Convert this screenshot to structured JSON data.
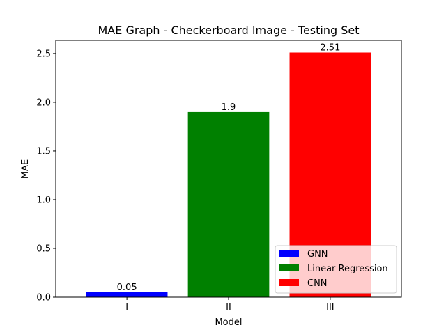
{
  "chart_data": {
    "type": "bar",
    "title": "MAE Graph - Checkerboard Image - Testing Set",
    "xlabel": "Model",
    "ylabel": "MAE",
    "categories": [
      "I",
      "II",
      "III"
    ],
    "values": [
      0.05,
      1.9,
      2.51
    ],
    "data_labels": [
      "0.05",
      "1.9",
      "2.51"
    ],
    "bar_colors": [
      "#0000ff",
      "#008000",
      "#ff0000"
    ],
    "ylim": [
      0,
      2.635
    ],
    "yticks": [
      0.0,
      0.5,
      1.0,
      1.5,
      2.0,
      2.5
    ],
    "ytick_labels": [
      "0.0",
      "0.5",
      "1.0",
      "1.5",
      "2.0",
      "2.5"
    ],
    "grid": false,
    "legend": {
      "placement": "lower-right",
      "entries": [
        {
          "label": "GNN",
          "color": "#0000ff"
        },
        {
          "label": "Linear Regression",
          "color": "#008000"
        },
        {
          "label": "CNN",
          "color": "#ff0000"
        }
      ]
    }
  }
}
